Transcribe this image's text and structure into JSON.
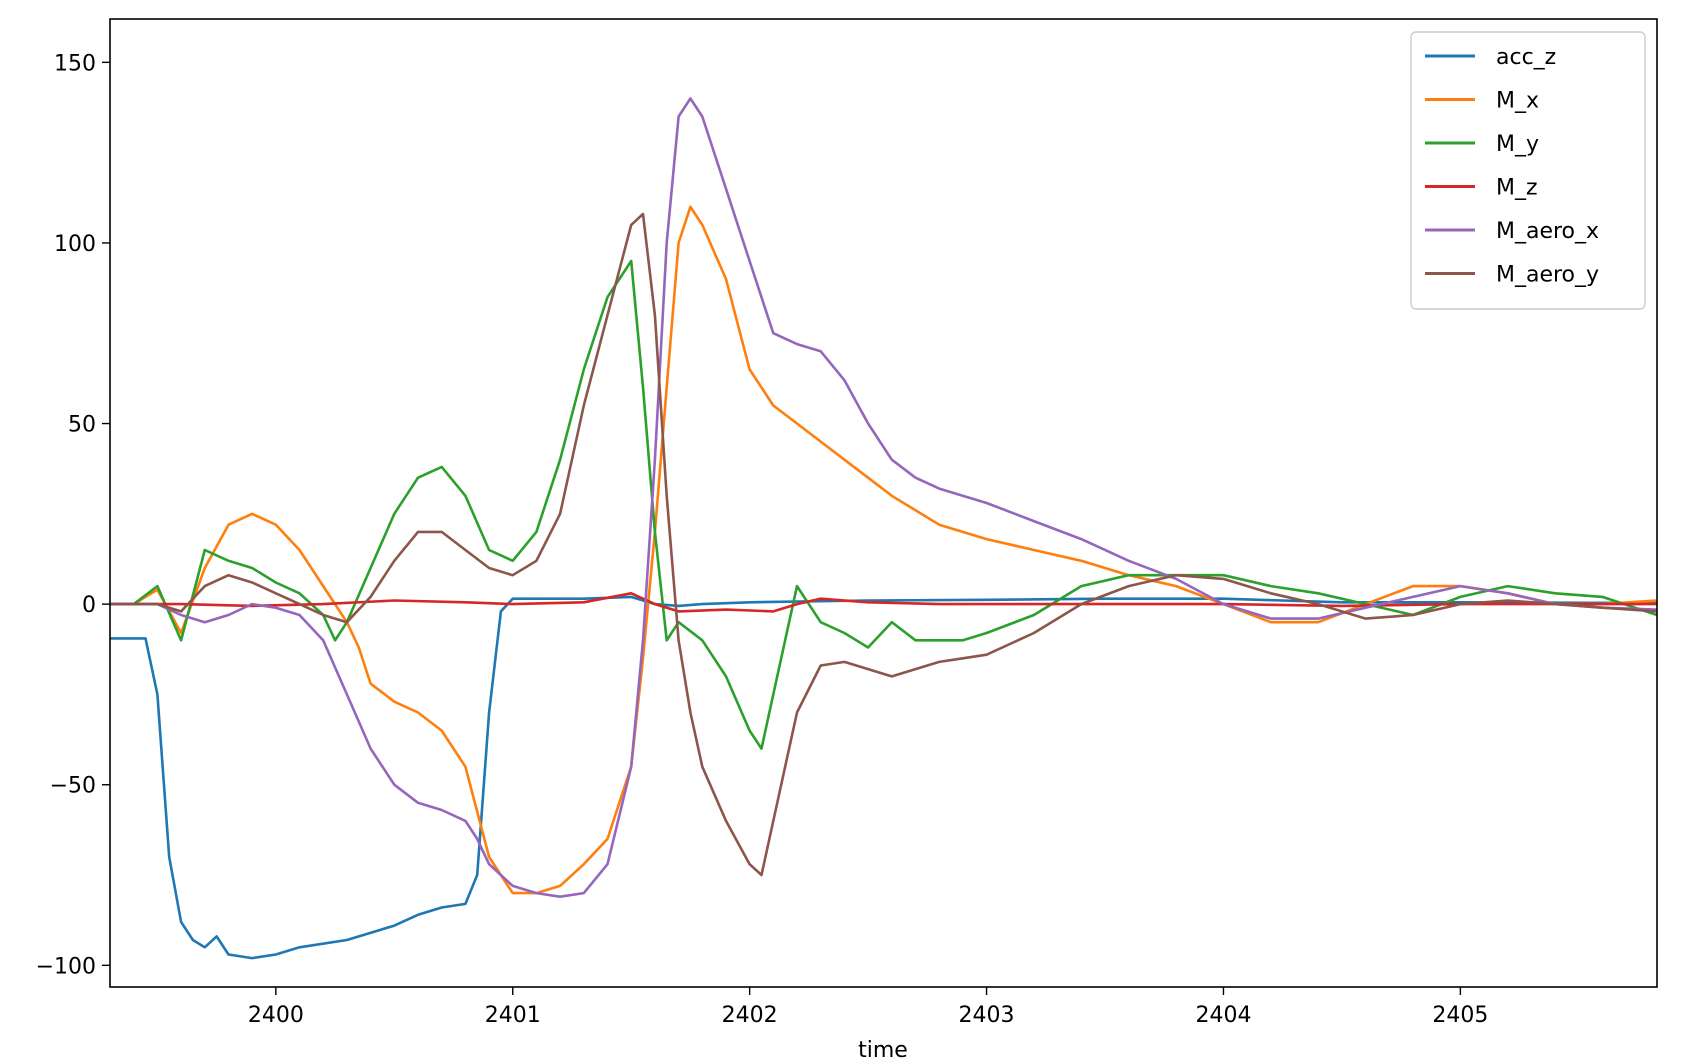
{
  "chart_data": {
    "type": "line",
    "title": "",
    "xlabel": "time",
    "ylabel": "",
    "xlim": [
      2399.3,
      2405.83
    ],
    "ylim": [
      -106,
      162
    ],
    "x_ticks": [
      2400,
      2401,
      2402,
      2403,
      2404,
      2405
    ],
    "y_ticks": [
      -100,
      -50,
      0,
      50,
      100,
      150
    ],
    "grid": false,
    "legend_position": "top-right",
    "series": [
      {
        "name": "acc_z",
        "color": "#1f77b4",
        "points": [
          [
            2399.3,
            -9.5
          ],
          [
            2399.45,
            -9.5
          ],
          [
            2399.5,
            -25
          ],
          [
            2399.55,
            -70
          ],
          [
            2399.6,
            -88
          ],
          [
            2399.65,
            -93
          ],
          [
            2399.7,
            -95
          ],
          [
            2399.75,
            -92
          ],
          [
            2399.8,
            -97
          ],
          [
            2399.9,
            -98
          ],
          [
            2400.0,
            -97
          ],
          [
            2400.1,
            -95
          ],
          [
            2400.3,
            -93
          ],
          [
            2400.5,
            -89
          ],
          [
            2400.6,
            -86
          ],
          [
            2400.7,
            -84
          ],
          [
            2400.8,
            -83
          ],
          [
            2400.85,
            -75
          ],
          [
            2400.9,
            -30
          ],
          [
            2400.95,
            -2
          ],
          [
            2401.0,
            1.5
          ],
          [
            2401.3,
            1.5
          ],
          [
            2401.5,
            2
          ],
          [
            2401.6,
            0
          ],
          [
            2401.7,
            -0.5
          ],
          [
            2401.8,
            0
          ],
          [
            2402.0,
            0.5
          ],
          [
            2402.5,
            1
          ],
          [
            2403.0,
            1.2
          ],
          [
            2403.5,
            1.5
          ],
          [
            2404.0,
            1.5
          ],
          [
            2404.5,
            0.5
          ],
          [
            2405.0,
            0.5
          ],
          [
            2405.83,
            0.3
          ]
        ]
      },
      {
        "name": "M_x",
        "color": "#ff7f0e",
        "points": [
          [
            2399.3,
            0
          ],
          [
            2399.4,
            0
          ],
          [
            2399.5,
            4
          ],
          [
            2399.6,
            -8
          ],
          [
            2399.7,
            10
          ],
          [
            2399.8,
            22
          ],
          [
            2399.9,
            25
          ],
          [
            2400.0,
            22
          ],
          [
            2400.1,
            15
          ],
          [
            2400.2,
            5
          ],
          [
            2400.3,
            -5
          ],
          [
            2400.35,
            -12
          ],
          [
            2400.4,
            -22
          ],
          [
            2400.5,
            -27
          ],
          [
            2400.6,
            -30
          ],
          [
            2400.7,
            -35
          ],
          [
            2400.8,
            -45
          ],
          [
            2400.9,
            -70
          ],
          [
            2401.0,
            -80
          ],
          [
            2401.1,
            -80
          ],
          [
            2401.2,
            -78
          ],
          [
            2401.3,
            -72
          ],
          [
            2401.4,
            -65
          ],
          [
            2401.5,
            -45
          ],
          [
            2401.55,
            -15
          ],
          [
            2401.6,
            20
          ],
          [
            2401.65,
            60
          ],
          [
            2401.7,
            100
          ],
          [
            2401.75,
            110
          ],
          [
            2401.8,
            105
          ],
          [
            2401.9,
            90
          ],
          [
            2402.0,
            65
          ],
          [
            2402.1,
            55
          ],
          [
            2402.2,
            50
          ],
          [
            2402.3,
            45
          ],
          [
            2402.4,
            40
          ],
          [
            2402.5,
            35
          ],
          [
            2402.6,
            30
          ],
          [
            2402.8,
            22
          ],
          [
            2403.0,
            18
          ],
          [
            2403.2,
            15
          ],
          [
            2403.4,
            12
          ],
          [
            2403.6,
            8
          ],
          [
            2403.8,
            5
          ],
          [
            2404.0,
            0
          ],
          [
            2404.2,
            -5
          ],
          [
            2404.4,
            -5
          ],
          [
            2404.6,
            0
          ],
          [
            2404.8,
            5
          ],
          [
            2405.0,
            5
          ],
          [
            2405.2,
            3
          ],
          [
            2405.4,
            0
          ],
          [
            2405.6,
            0
          ],
          [
            2405.83,
            1
          ]
        ]
      },
      {
        "name": "M_y",
        "color": "#2ca02c",
        "points": [
          [
            2399.3,
            0
          ],
          [
            2399.4,
            0
          ],
          [
            2399.5,
            5
          ],
          [
            2399.6,
            -10
          ],
          [
            2399.7,
            15
          ],
          [
            2399.8,
            12
          ],
          [
            2399.9,
            10
          ],
          [
            2400.0,
            6
          ],
          [
            2400.1,
            3
          ],
          [
            2400.2,
            -3
          ],
          [
            2400.25,
            -10
          ],
          [
            2400.3,
            -5
          ],
          [
            2400.4,
            10
          ],
          [
            2400.5,
            25
          ],
          [
            2400.6,
            35
          ],
          [
            2400.7,
            38
          ],
          [
            2400.8,
            30
          ],
          [
            2400.9,
            15
          ],
          [
            2401.0,
            12
          ],
          [
            2401.1,
            20
          ],
          [
            2401.2,
            40
          ],
          [
            2401.3,
            65
          ],
          [
            2401.4,
            85
          ],
          [
            2401.5,
            95
          ],
          [
            2401.55,
            60
          ],
          [
            2401.6,
            20
          ],
          [
            2401.65,
            -10
          ],
          [
            2401.7,
            -5
          ],
          [
            2401.8,
            -10
          ],
          [
            2401.9,
            -20
          ],
          [
            2402.0,
            -35
          ],
          [
            2402.05,
            -40
          ],
          [
            2402.1,
            -25
          ],
          [
            2402.2,
            5
          ],
          [
            2402.3,
            -5
          ],
          [
            2402.4,
            -8
          ],
          [
            2402.5,
            -12
          ],
          [
            2402.6,
            -5
          ],
          [
            2402.7,
            -10
          ],
          [
            2402.8,
            -10
          ],
          [
            2402.9,
            -10
          ],
          [
            2403.0,
            -8
          ],
          [
            2403.2,
            -3
          ],
          [
            2403.4,
            5
          ],
          [
            2403.6,
            8
          ],
          [
            2403.8,
            8
          ],
          [
            2404.0,
            8
          ],
          [
            2404.2,
            5
          ],
          [
            2404.4,
            3
          ],
          [
            2404.6,
            0
          ],
          [
            2404.8,
            -3
          ],
          [
            2405.0,
            2
          ],
          [
            2405.2,
            5
          ],
          [
            2405.4,
            3
          ],
          [
            2405.6,
            2
          ],
          [
            2405.83,
            -3
          ]
        ]
      },
      {
        "name": "M_z",
        "color": "#d62728",
        "points": [
          [
            2399.3,
            0
          ],
          [
            2399.6,
            0
          ],
          [
            2399.9,
            -0.5
          ],
          [
            2400.2,
            0
          ],
          [
            2400.5,
            1
          ],
          [
            2400.8,
            0.5
          ],
          [
            2401.0,
            0
          ],
          [
            2401.3,
            0.5
          ],
          [
            2401.5,
            3
          ],
          [
            2401.6,
            0
          ],
          [
            2401.7,
            -2
          ],
          [
            2401.9,
            -1.5
          ],
          [
            2402.1,
            -2
          ],
          [
            2402.2,
            0
          ],
          [
            2402.3,
            1.5
          ],
          [
            2402.5,
            0.5
          ],
          [
            2402.8,
            0
          ],
          [
            2403.2,
            0
          ],
          [
            2403.6,
            0
          ],
          [
            2404.0,
            0
          ],
          [
            2404.5,
            -0.5
          ],
          [
            2405.0,
            0
          ],
          [
            2405.83,
            0
          ]
        ]
      },
      {
        "name": "M_aero_x",
        "color": "#9467bd",
        "points": [
          [
            2399.3,
            0
          ],
          [
            2399.5,
            0
          ],
          [
            2399.6,
            -3
          ],
          [
            2399.7,
            -5
          ],
          [
            2399.8,
            -3
          ],
          [
            2399.9,
            0
          ],
          [
            2400.0,
            -1
          ],
          [
            2400.1,
            -3
          ],
          [
            2400.2,
            -10
          ],
          [
            2400.3,
            -25
          ],
          [
            2400.4,
            -40
          ],
          [
            2400.5,
            -50
          ],
          [
            2400.6,
            -55
          ],
          [
            2400.7,
            -57
          ],
          [
            2400.8,
            -60
          ],
          [
            2400.85,
            -65
          ],
          [
            2400.9,
            -72
          ],
          [
            2401.0,
            -78
          ],
          [
            2401.1,
            -80
          ],
          [
            2401.2,
            -81
          ],
          [
            2401.3,
            -80
          ],
          [
            2401.4,
            -72
          ],
          [
            2401.5,
            -45
          ],
          [
            2401.55,
            -10
          ],
          [
            2401.6,
            40
          ],
          [
            2401.65,
            100
          ],
          [
            2401.7,
            135
          ],
          [
            2401.75,
            140
          ],
          [
            2401.8,
            135
          ],
          [
            2401.9,
            115
          ],
          [
            2402.0,
            95
          ],
          [
            2402.1,
            75
          ],
          [
            2402.2,
            72
          ],
          [
            2402.3,
            70
          ],
          [
            2402.4,
            62
          ],
          [
            2402.5,
            50
          ],
          [
            2402.6,
            40
          ],
          [
            2402.7,
            35
          ],
          [
            2402.8,
            32
          ],
          [
            2403.0,
            28
          ],
          [
            2403.2,
            23
          ],
          [
            2403.4,
            18
          ],
          [
            2403.6,
            12
          ],
          [
            2403.8,
            7
          ],
          [
            2404.0,
            0
          ],
          [
            2404.2,
            -4
          ],
          [
            2404.4,
            -4
          ],
          [
            2404.6,
            -1
          ],
          [
            2404.8,
            2
          ],
          [
            2405.0,
            5
          ],
          [
            2405.2,
            3
          ],
          [
            2405.4,
            0
          ],
          [
            2405.6,
            -1
          ],
          [
            2405.83,
            -1.5
          ]
        ]
      },
      {
        "name": "M_aero_y",
        "color": "#8c564b",
        "points": [
          [
            2399.3,
            0
          ],
          [
            2399.5,
            0
          ],
          [
            2399.6,
            -2
          ],
          [
            2399.7,
            5
          ],
          [
            2399.8,
            8
          ],
          [
            2399.9,
            6
          ],
          [
            2400.0,
            3
          ],
          [
            2400.1,
            0
          ],
          [
            2400.2,
            -3
          ],
          [
            2400.3,
            -5
          ],
          [
            2400.4,
            2
          ],
          [
            2400.5,
            12
          ],
          [
            2400.6,
            20
          ],
          [
            2400.7,
            20
          ],
          [
            2400.8,
            15
          ],
          [
            2400.9,
            10
          ],
          [
            2401.0,
            8
          ],
          [
            2401.1,
            12
          ],
          [
            2401.2,
            25
          ],
          [
            2401.3,
            55
          ],
          [
            2401.4,
            80
          ],
          [
            2401.5,
            105
          ],
          [
            2401.55,
            108
          ],
          [
            2401.6,
            80
          ],
          [
            2401.65,
            30
          ],
          [
            2401.7,
            -10
          ],
          [
            2401.75,
            -30
          ],
          [
            2401.8,
            -45
          ],
          [
            2401.9,
            -60
          ],
          [
            2402.0,
            -72
          ],
          [
            2402.05,
            -75
          ],
          [
            2402.1,
            -60
          ],
          [
            2402.2,
            -30
          ],
          [
            2402.3,
            -17
          ],
          [
            2402.4,
            -16
          ],
          [
            2402.5,
            -18
          ],
          [
            2402.6,
            -20
          ],
          [
            2402.7,
            -18
          ],
          [
            2402.8,
            -16
          ],
          [
            2402.9,
            -15
          ],
          [
            2403.0,
            -14
          ],
          [
            2403.2,
            -8
          ],
          [
            2403.4,
            0
          ],
          [
            2403.6,
            5
          ],
          [
            2403.8,
            8
          ],
          [
            2404.0,
            7
          ],
          [
            2404.2,
            3
          ],
          [
            2404.4,
            0
          ],
          [
            2404.6,
            -4
          ],
          [
            2404.8,
            -3
          ],
          [
            2405.0,
            0
          ],
          [
            2405.2,
            1
          ],
          [
            2405.4,
            0
          ],
          [
            2405.6,
            -1
          ],
          [
            2405.83,
            -2
          ]
        ]
      }
    ]
  }
}
